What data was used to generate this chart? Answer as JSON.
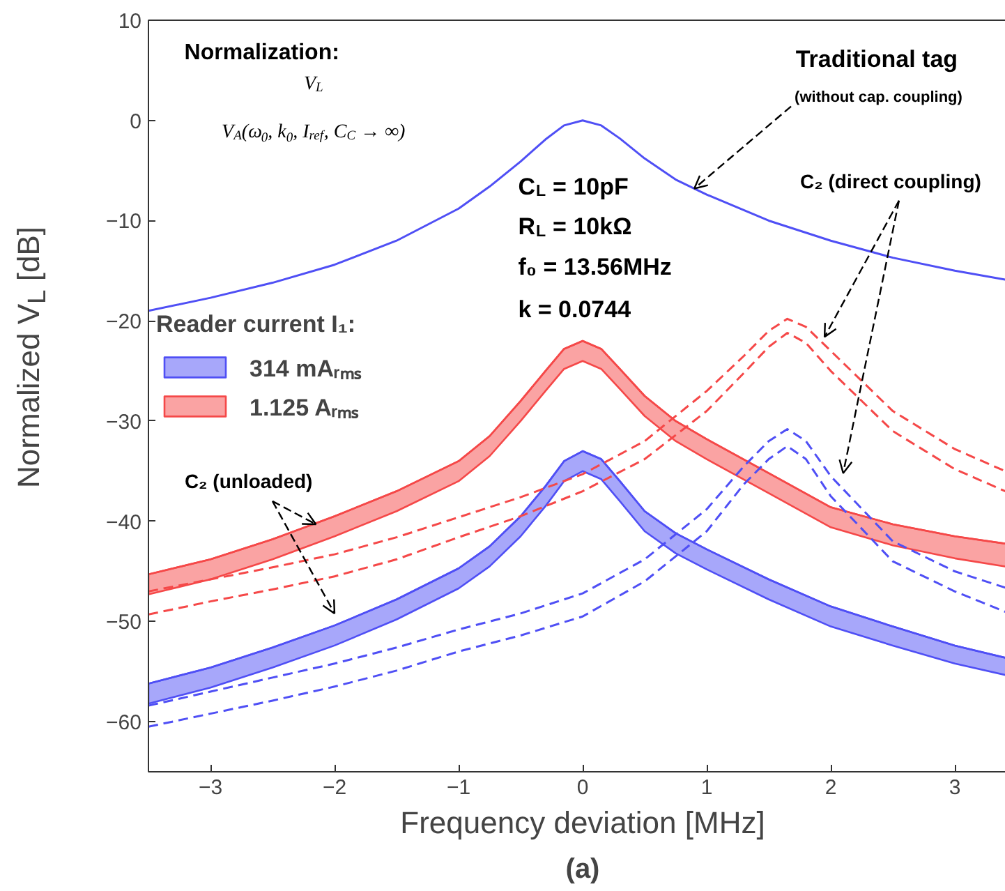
{
  "chart_data": {
    "type": "line",
    "xlabel": "Frequency deviation [MHz]",
    "ylabel": "Normalized V$_{L}$ [dB]",
    "legend_title": "Reader current I₁:",
    "xlim": [
      -3.5,
      3.5
    ],
    "ylim": [
      -65,
      10
    ],
    "xticks": [
      -3,
      -2,
      -1,
      0,
      1,
      2,
      3
    ],
    "yticks": [
      -60,
      -50,
      -40,
      -30,
      -20,
      -10,
      0,
      10
    ],
    "grid": false,
    "legend": "left",
    "marker": "none",
    "x": [
      -3.5,
      -3,
      -2.5,
      -2,
      -1.5,
      -1,
      -0.75,
      -0.5,
      -0.3,
      -0.15,
      0,
      0.15,
      0.3,
      0.5,
      0.75,
      1,
      1.5,
      2,
      2.5,
      3,
      3.5
    ],
    "series": [
      {
        "color": "#4f4ff5",
        "line_style": "solid",
        "values": [
          -19,
          -17.7,
          -16.2,
          -14.4,
          -12,
          -8.8,
          -6.6,
          -4.1,
          -1.9,
          -0.5,
          0,
          -0.5,
          -1.8,
          -3.8,
          -5.9,
          -7.4,
          -10,
          -12,
          -13.7,
          -15,
          -16.1
        ]
      },
      {
        "name": "314 mAᵣₘₛ",
        "color": "#4f4ff5",
        "values": [
          -56.2,
          -54.6,
          -52.6,
          -50.4,
          -47.8,
          -44.7,
          -42.5,
          -39.5,
          -36.5,
          -34,
          -33,
          -33.8,
          -36,
          -39,
          -41.2,
          -42.8,
          -45.8,
          -48.5,
          -50.5,
          -52.4,
          -53.9
        ],
        "upper": [
          -56.2,
          -54.6,
          -52.6,
          -50.4,
          -47.8,
          -44.7,
          -42.5,
          -39.5,
          -36.5,
          -34,
          -33,
          -33.8,
          -36,
          -39,
          -41.2,
          -42.8,
          -45.8,
          -48.5,
          -50.5,
          -52.4,
          -53.9
        ],
        "lower": [
          -58.2,
          -56.6,
          -54.6,
          -52.4,
          -49.8,
          -46.7,
          -44.5,
          -41.5,
          -38.5,
          -36,
          -35,
          -35.8,
          -38,
          -41,
          -43.2,
          -44.8,
          -47.8,
          -50.5,
          -52.4,
          -54.2,
          -55.6
        ]
      },
      {
        "name": "1.125 Aᵣₘₛ",
        "color": "#f54848",
        "values": [
          -45.3,
          -43.8,
          -41.8,
          -39.5,
          -37,
          -34,
          -31.5,
          -28,
          -25,
          -22.8,
          -22,
          -22.8,
          -24.8,
          -27.5,
          -30,
          -31.8,
          -35.2,
          -38.6,
          -40.3,
          -41.5,
          -42.4
        ],
        "upper": [
          -45.3,
          -43.8,
          -41.8,
          -39.5,
          -37,
          -34,
          -31.5,
          -28,
          -25,
          -22.8,
          -22,
          -22.8,
          -24.8,
          -27.5,
          -30,
          -31.8,
          -35.2,
          -38.6,
          -40.3,
          -41.5,
          -42.4
        ],
        "lower": [
          -47.3,
          -45.8,
          -43.8,
          -41.5,
          -39,
          -36,
          -33.5,
          -30,
          -27,
          -24.8,
          -24,
          -24.8,
          -26.8,
          -29.5,
          -32,
          -33.8,
          -37.2,
          -40.6,
          -42.4,
          -43.7,
          -44.7
        ]
      },
      {
        "color": "#f54848",
        "line_style": "dashed",
        "x": [
          -3.5,
          -3,
          -2.5,
          -2,
          -1.5,
          -1,
          -0.5,
          0,
          0.5,
          1,
          1.3,
          1.5,
          1.65,
          1.8,
          2,
          2.5,
          3,
          3.5
        ],
        "values": [
          -47,
          -45.8,
          -44.6,
          -43.3,
          -41.6,
          -39.6,
          -37.6,
          -35.3,
          -32,
          -27,
          -23.5,
          -21,
          -19.8,
          -20.6,
          -23,
          -29,
          -32.8,
          -35.5
        ]
      },
      {
        "color": "#f54848",
        "line_style": "dashed",
        "x": [
          -3.5,
          -3,
          -2.5,
          -2,
          -1.5,
          -1,
          -0.5,
          0,
          0.5,
          1,
          1.3,
          1.5,
          1.65,
          1.8,
          2,
          2.5,
          3,
          3.5
        ],
        "values": [
          -49.3,
          -48,
          -46.8,
          -45.5,
          -43.8,
          -41.6,
          -39.5,
          -37,
          -33.8,
          -29,
          -25.2,
          -22.6,
          -21.2,
          -22.2,
          -25,
          -31,
          -34.8,
          -37.5
        ]
      },
      {
        "color": "#4f4ff5",
        "line_style": "dashed",
        "x": [
          -3.5,
          -3,
          -2.5,
          -2,
          -1.5,
          -1,
          -0.5,
          0,
          0.5,
          1,
          1.3,
          1.5,
          1.65,
          1.8,
          2,
          2.5,
          3,
          3.5
        ],
        "values": [
          -58.4,
          -57,
          -55.6,
          -54.2,
          -52.6,
          -50.8,
          -49.2,
          -47.2,
          -43.8,
          -38.8,
          -34.5,
          -32,
          -30.8,
          -32,
          -35.5,
          -42,
          -45,
          -47
        ]
      },
      {
        "color": "#4f4ff5",
        "line_style": "dashed",
        "x": [
          -3.5,
          -3,
          -2.5,
          -2,
          -1.5,
          -1,
          -0.5,
          0,
          0.5,
          1,
          1.3,
          1.5,
          1.65,
          1.8,
          2,
          2.5,
          3,
          3.5
        ],
        "values": [
          -60.5,
          -59.2,
          -57.9,
          -56.5,
          -54.9,
          -53,
          -51.4,
          -49.5,
          -46,
          -41,
          -36.3,
          -33.8,
          -32.5,
          -33.8,
          -37.5,
          -44,
          -47,
          -49.5
        ]
      }
    ],
    "annotations": [
      "Normalization:",
      "V$_{L}$",
      "V$_{A}$(ω$_{0}$, k$_{0}$, I$_{ref}$, C$_{C}$ → ∞)",
      "Traditional tag",
      {
        "text": "(without cap. coupling)",
        "x": 0.9,
        "y": -6.8
      },
      {
        "text": "C₂ (direct coupling)",
        "x": 1.95,
        "y": -21.6
      },
      {
        "text": "C₂ (unloaded)",
        "x": -2.15,
        "y": -40.3
      },
      "C$_{L}$ = 10pF",
      "R$_{L}$ = 10kΩ",
      "f₀ = 13.56MHz",
      "k = 0.0744",
      "(a)"
    ]
  }
}
